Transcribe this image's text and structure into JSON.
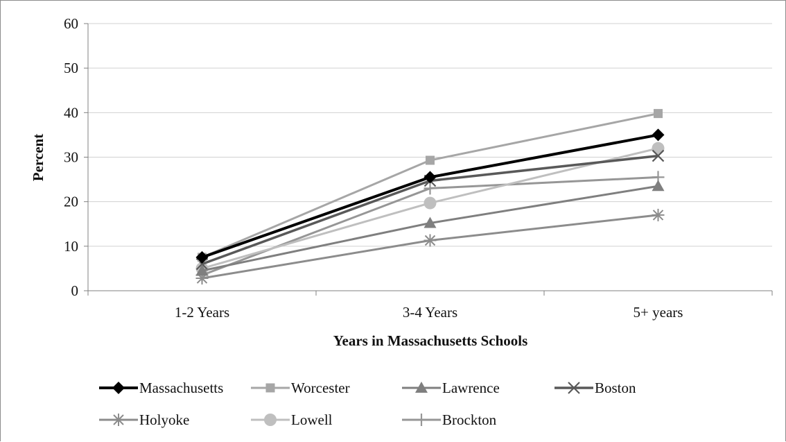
{
  "chart_data": {
    "type": "line",
    "xlabel": "Years in Massachusetts Schools",
    "ylabel": "Percent",
    "categories": [
      "1-2 Years",
      "3-4 Years",
      "5+ years"
    ],
    "ylim": [
      0,
      60
    ],
    "yticks": [
      0,
      10,
      20,
      30,
      40,
      50,
      60
    ],
    "grid": true,
    "legend_position": "bottom",
    "series": [
      {
        "name": "Massachusetts",
        "values": [
          7.5,
          25.5,
          35
        ],
        "color": "#000000",
        "marker": "diamond",
        "width": 4
      },
      {
        "name": "Worcester",
        "values": [
          7.5,
          29.3,
          39.8
        ],
        "color": "#a6a6a6",
        "marker": "square",
        "width": 3
      },
      {
        "name": "Lawrence",
        "values": [
          4.5,
          15.2,
          23.5
        ],
        "color": "#7f7f7f",
        "marker": "triangle",
        "width": 3
      },
      {
        "name": "Boston",
        "values": [
          6.0,
          24.7,
          30.3
        ],
        "color": "#595959",
        "marker": "x",
        "width": 3.5
      },
      {
        "name": "Holyoke",
        "values": [
          2.8,
          11.3,
          17.0
        ],
        "color": "#8c8c8c",
        "marker": "star",
        "width": 3
      },
      {
        "name": "Lowell",
        "values": [
          5.0,
          19.7,
          32.0
        ],
        "color": "#bfbfbf",
        "marker": "circle",
        "width": 3
      },
      {
        "name": "Brockton",
        "values": [
          3.5,
          23.0,
          25.5
        ],
        "color": "#969696",
        "marker": "plus",
        "width": 3
      }
    ]
  }
}
